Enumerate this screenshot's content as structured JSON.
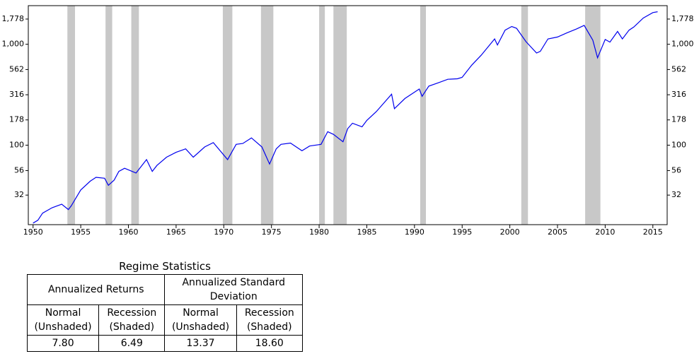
{
  "chart_data": {
    "type": "line",
    "log_scale": true,
    "x": [
      1950.0,
      1950.5,
      1951.0,
      1952.0,
      1953.0,
      1953.7,
      1954.0,
      1955.0,
      1956.0,
      1956.6,
      1957.5,
      1957.9,
      1958.5,
      1959.0,
      1959.6,
      1960.8,
      1961.9,
      1962.5,
      1963.0,
      1964.0,
      1965.0,
      1966.0,
      1966.8,
      1968.0,
      1968.9,
      1970.4,
      1971.3,
      1972.0,
      1972.9,
      1974.0,
      1974.8,
      1975.5,
      1976.0,
      1977.0,
      1978.2,
      1979.0,
      1980.2,
      1980.9,
      1981.5,
      1982.5,
      1983.0,
      1983.5,
      1984.5,
      1985.0,
      1986.0,
      1987.6,
      1987.9,
      1989.0,
      1990.5,
      1990.8,
      1991.5,
      1992.5,
      1993.5,
      1994.5,
      1995.0,
      1996.0,
      1997.0,
      1998.4,
      1998.7,
      1999.5,
      2000.2,
      2000.7,
      2001.7,
      2002.8,
      2003.2,
      2004.0,
      2005.0,
      2006.0,
      2007.0,
      2007.8,
      2008.7,
      2009.2,
      2010.0,
      2010.5,
      2011.3,
      2011.8,
      2012.5,
      2013.0,
      2014.0,
      2015.0,
      2015.5
    ],
    "series": [
      {
        "color": "#0000ee",
        "values": [
          16.9,
          18,
          21.2,
          24,
          26,
          23,
          25,
          36,
          44,
          48,
          47,
          40,
          45,
          55,
          59,
          53,
          72,
          55,
          63,
          76,
          85,
          92,
          76,
          96,
          106,
          72,
          102,
          104,
          118,
          96,
          65,
          92,
          102,
          105,
          88,
          98,
          102,
          136,
          128,
          108,
          146,
          165,
          152,
          176,
          215,
          320,
          230,
          290,
          360,
          305,
          385,
          415,
          450,
          455,
          470,
          620,
          780,
          1130,
          985,
          1380,
          1500,
          1440,
          1060,
          820,
          850,
          1130,
          1180,
          1300,
          1420,
          1540,
          1100,
          735,
          1115,
          1050,
          1340,
          1130,
          1380,
          1480,
          1820,
          2060,
          2100
        ]
      }
    ],
    "recessions": [
      [
        1953.6,
        1954.4
      ],
      [
        1957.6,
        1958.3
      ],
      [
        1960.3,
        1961.1
      ],
      [
        1969.9,
        1970.9
      ],
      [
        1973.9,
        1975.2
      ],
      [
        1980.0,
        1980.6
      ],
      [
        1981.5,
        1982.9
      ],
      [
        1990.6,
        1991.2
      ],
      [
        2001.2,
        2001.9
      ],
      [
        2007.9,
        2009.5
      ]
    ],
    "recession_color": "#c8c8c8",
    "xlim": [
      1949.5,
      2016.5
    ],
    "xticks": [
      1950,
      1955,
      1960,
      1965,
      1970,
      1975,
      1980,
      1985,
      1990,
      1995,
      2000,
      2005,
      2010,
      2015
    ],
    "ylim": [
      16.3,
      2414
    ],
    "yticks": [
      32,
      56,
      100,
      178,
      316,
      562,
      {
        "value": 1000,
        "label": "1,000"
      },
      {
        "value": 1778,
        "label": "1,778"
      }
    ]
  },
  "table": {
    "title": "Regime Statistics",
    "groups": [
      "Annualized Returns",
      "Annualized Standard Deviation"
    ],
    "columns": [
      "Normal (Unshaded)",
      "Recession (Shaded)",
      "Normal (Unshaded)",
      "Recession (Shaded)"
    ],
    "rows": [
      [
        "7.80",
        "6.49",
        "13.37",
        "18.60"
      ]
    ]
  }
}
